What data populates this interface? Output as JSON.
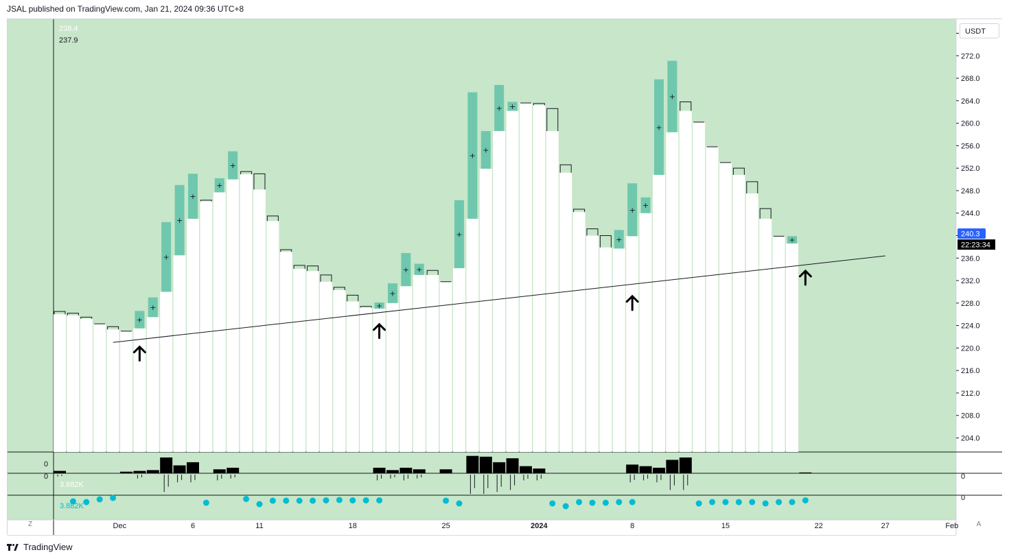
{
  "header": {
    "publisher_line": "JSAL published on TradingView.com, Jan 21, 2024 09:36 UTC+8"
  },
  "footer": {
    "brand": "TradingView"
  },
  "toolbar": {
    "currency": "USDT",
    "corner_left": "Z",
    "corner_right": "A"
  },
  "colors": {
    "background": "#c8e6c9",
    "up_candle": "#6fc8ad",
    "down_body": "#ffffff",
    "volume_bar": "#000000",
    "dots": "#00bcd4",
    "price_tag": "#2962ff",
    "countdown_tag": "#000000"
  },
  "chart_data": {
    "type": "bar",
    "title": "",
    "ylim": [
      201.5,
      278.5
    ],
    "ytick_labels": [
      "204.0",
      "208.0",
      "212.0",
      "216.0",
      "220.0",
      "224.0",
      "228.0",
      "232.0",
      "236.0",
      "240.0",
      "244.0",
      "248.0",
      "252.0",
      "256.0",
      "260.0",
      "264.0",
      "268.0",
      "272.0",
      "276.0"
    ],
    "ytick_values": [
      204,
      208,
      212,
      216,
      220,
      224,
      228,
      232,
      236,
      240,
      244,
      248,
      252,
      256,
      260,
      264,
      268,
      272,
      276
    ],
    "xtick_labels": [
      "Dec",
      "6",
      "11",
      "18",
      "25",
      "2024",
      "8",
      "15",
      "22",
      "27",
      "Feb"
    ],
    "xtick_slots": [
      4.5,
      10,
      15,
      22,
      29,
      36,
      43,
      50,
      57,
      62,
      67
    ],
    "ohlc_readout": [
      "238.4",
      "237.9"
    ],
    "last_price": "240.3",
    "countdown": "22:23:34",
    "trendline": {
      "from": [
        4,
        221.0
      ],
      "to": [
        62,
        236.4
      ]
    },
    "arrows": [
      {
        "slot": 6,
        "price": 219
      },
      {
        "slot": 24,
        "price": 223
      },
      {
        "slot": 43,
        "price": 228
      },
      {
        "slot": 56,
        "price": 232.5
      }
    ],
    "series": [
      {
        "name": "",
        "candles": [
          [
            0,
            226,
            226.5,
            226.5,
            "d"
          ],
          [
            1,
            225.8,
            226.2,
            226.2,
            "d"
          ],
          [
            2,
            225.2,
            225.5,
            225.5,
            "d"
          ],
          [
            3,
            224.3,
            224.4,
            224.4,
            "d"
          ],
          [
            4,
            223.3,
            223.8,
            223.8,
            "d"
          ],
          [
            5,
            223,
            223.2,
            223.2,
            "d"
          ],
          [
            6,
            223.5,
            226.6,
            226.6,
            "u"
          ],
          [
            7,
            225.5,
            229,
            229,
            "u"
          ],
          [
            8,
            230,
            242.4,
            242.4,
            "u"
          ],
          [
            9,
            236.5,
            249,
            249,
            "u"
          ],
          [
            10,
            243,
            251,
            251,
            "u"
          ],
          [
            11,
            246.1,
            246.3,
            246.3,
            "d"
          ],
          [
            12,
            247.7,
            250.2,
            250.2,
            "u"
          ],
          [
            13,
            250,
            255,
            255,
            "u"
          ],
          [
            14,
            250.9,
            251.4,
            251.4,
            "d"
          ],
          [
            15,
            248.2,
            251,
            251,
            "d"
          ],
          [
            16,
            242.6,
            243.5,
            243.5,
            "d"
          ],
          [
            17,
            237.1,
            237.5,
            237.5,
            "d"
          ],
          [
            18,
            234.1,
            234.7,
            234.7,
            "d"
          ],
          [
            19,
            233.7,
            234.6,
            234.6,
            "d"
          ],
          [
            20,
            231.8,
            233,
            233,
            "d"
          ],
          [
            21,
            230.3,
            230.8,
            230.8,
            "d"
          ],
          [
            22,
            228.3,
            229.4,
            229.4,
            "d"
          ],
          [
            23,
            227.2,
            227.4,
            227.4,
            "d"
          ],
          [
            24,
            227,
            228.1,
            228.1,
            "u"
          ],
          [
            25,
            228,
            231.5,
            231.5,
            "u"
          ],
          [
            26,
            231,
            236.9,
            236.9,
            "u"
          ],
          [
            27,
            233,
            235,
            235,
            "u"
          ],
          [
            28,
            233,
            233.8,
            233.8,
            "d"
          ],
          [
            29,
            231.8,
            232,
            232,
            "d"
          ],
          [
            30,
            234.2,
            246.3,
            246.3,
            "u"
          ],
          [
            31,
            243,
            265.5,
            265.5,
            "u"
          ],
          [
            32,
            251.9,
            258.6,
            258.6,
            "u"
          ],
          [
            33,
            258.6,
            266.8,
            266.8,
            "u"
          ],
          [
            34,
            262.2,
            263.8,
            263.8,
            "u"
          ],
          [
            35,
            263.6,
            263.8,
            263.8,
            "d"
          ],
          [
            36,
            263.2,
            263.5,
            263.5,
            "d"
          ],
          [
            37,
            258.6,
            262.6,
            262.6,
            "d"
          ],
          [
            38,
            251.2,
            252.6,
            252.6,
            "d"
          ],
          [
            39,
            244.2,
            244.7,
            244.7,
            "d"
          ],
          [
            40,
            240,
            241.2,
            241.2,
            "d"
          ],
          [
            41,
            237.9,
            240,
            240,
            "d"
          ],
          [
            42,
            237.7,
            241,
            241,
            "u"
          ],
          [
            43,
            239.9,
            249.3,
            249.3,
            "u"
          ],
          [
            44,
            244,
            246.8,
            246.8,
            "u"
          ],
          [
            45,
            250.8,
            267.8,
            267.8,
            "u"
          ],
          [
            46,
            258.4,
            271.1,
            271.1,
            "u"
          ],
          [
            47,
            262.2,
            263.8,
            263.8,
            "d"
          ],
          [
            48,
            260.2,
            260.2,
            260.2,
            "d"
          ],
          [
            49,
            255.8,
            255.8,
            255.8,
            "d"
          ],
          [
            50,
            253,
            253,
            253,
            "d"
          ],
          [
            51,
            250.8,
            252,
            252,
            "d"
          ],
          [
            52,
            247.5,
            249.6,
            249.6,
            "d"
          ],
          [
            53,
            243,
            244.8,
            244.8,
            "d"
          ],
          [
            54,
            239.9,
            240,
            240,
            "d"
          ],
          [
            55,
            238.6,
            239.9,
            239.9,
            "u"
          ]
        ]
      }
    ],
    "volume_panel": {
      "label": "0",
      "bars": [
        [
          0,
          0.15
        ],
        [
          5,
          0.1
        ],
        [
          6,
          0.15
        ],
        [
          7,
          0.2
        ],
        [
          8,
          1.0
        ],
        [
          9,
          0.5
        ],
        [
          10,
          0.7
        ],
        [
          12,
          0.25
        ],
        [
          13,
          0.35
        ],
        [
          24,
          0.35
        ],
        [
          25,
          0.2
        ],
        [
          26,
          0.35
        ],
        [
          27,
          0.25
        ],
        [
          29,
          0.25
        ],
        [
          31,
          1.1
        ],
        [
          32,
          1.05
        ],
        [
          33,
          0.7
        ],
        [
          34,
          0.95
        ],
        [
          35,
          0.45
        ],
        [
          36,
          0.3
        ],
        [
          43,
          0.55
        ],
        [
          44,
          0.45
        ],
        [
          45,
          0.35
        ],
        [
          46,
          0.85
        ],
        [
          47,
          1.0
        ],
        [
          56,
          0.05
        ]
      ]
    },
    "oscillator_panel": {
      "label": "0",
      "value_labels": [
        "3.882K",
        "3.882K"
      ],
      "down_ticks": [
        [
          0,
          0.1
        ],
        [
          6,
          0.2
        ],
        [
          8,
          0.9
        ],
        [
          9,
          0.4
        ],
        [
          10,
          0.4
        ],
        [
          12,
          0.3
        ],
        [
          13,
          0.2
        ],
        [
          24,
          0.3
        ],
        [
          25,
          0.2
        ],
        [
          26,
          0.3
        ],
        [
          27,
          0.2
        ],
        [
          31,
          1.0
        ],
        [
          32,
          1.0
        ],
        [
          33,
          0.9
        ],
        [
          34,
          0.8
        ],
        [
          35,
          0.3
        ],
        [
          36,
          0.3
        ],
        [
          43,
          0.4
        ],
        [
          44,
          0.3
        ],
        [
          45,
          0.4
        ],
        [
          46,
          0.8
        ],
        [
          47,
          0.8
        ]
      ],
      "dots": [
        [
          1,
          0.0
        ],
        [
          2,
          -0.1
        ],
        [
          3,
          0.3
        ],
        [
          4,
          0.5
        ],
        [
          11,
          -0.2
        ],
        [
          14,
          0.35
        ],
        [
          15,
          -0.4
        ],
        [
          16,
          0.1
        ],
        [
          17,
          0.1
        ],
        [
          18,
          0.1
        ],
        [
          19,
          0.1
        ],
        [
          20,
          0.15
        ],
        [
          21,
          0.2
        ],
        [
          22,
          0.15
        ],
        [
          23,
          0.15
        ],
        [
          24,
          0.15
        ],
        [
          29,
          0.1
        ],
        [
          30,
          -0.3
        ],
        [
          37,
          -0.3
        ],
        [
          38,
          -0.7
        ],
        [
          39,
          -0.1
        ],
        [
          40,
          -0.2
        ],
        [
          41,
          -0.2
        ],
        [
          42,
          -0.1
        ],
        [
          43,
          -0.1
        ],
        [
          48,
          -0.3
        ],
        [
          49,
          -0.1
        ],
        [
          50,
          -0.1
        ],
        [
          51,
          -0.1
        ],
        [
          52,
          -0.1
        ],
        [
          53,
          -0.3
        ],
        [
          54,
          -0.1
        ],
        [
          55,
          -0.1
        ],
        [
          56,
          0.15
        ]
      ]
    }
  }
}
